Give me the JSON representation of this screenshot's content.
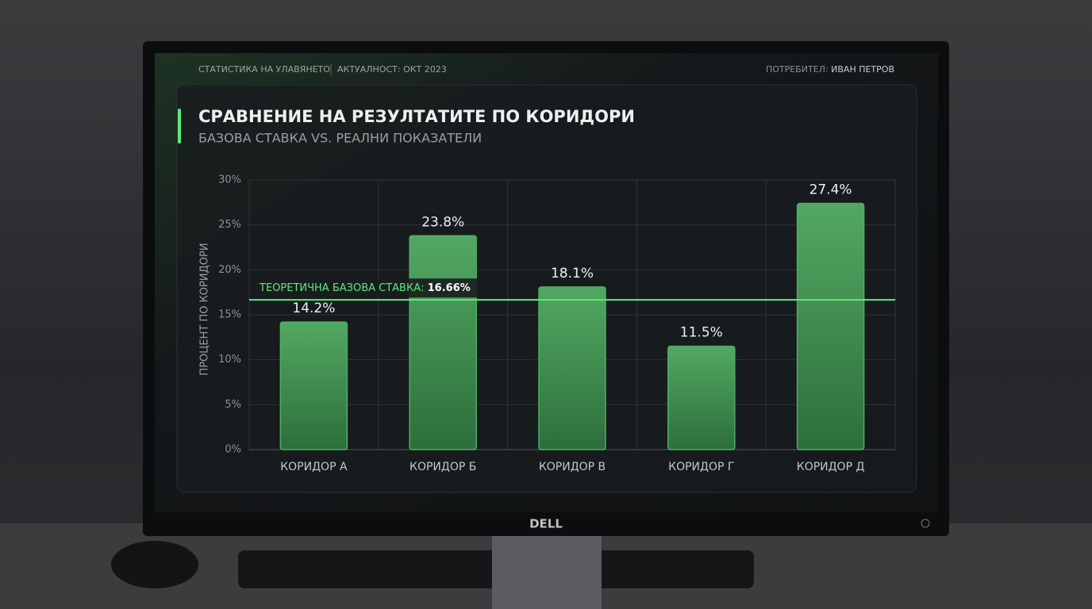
{
  "header": {
    "section": "СТАТИСТИКА НА УЛАВЯНЕТО",
    "updated": "АКТУАЛНОСТ: ОКТ 2023",
    "user_label": "ПОТРЕБИТЕЛ:",
    "user_name": "ИВАН ПЕТРОВ"
  },
  "brand": "DELL",
  "chart_data": {
    "type": "bar",
    "title": "СРАВНЕНИЕ НА РЕЗУЛТАТИТЕ ПО КОРИДОРИ",
    "subtitle": "БАЗОВА СТАВКА VS. РЕАЛНИ ПОКАЗАТЕЛИ",
    "y_label": "ПРОЦЕНТ ПО КОРИДОРИ",
    "categories": [
      "КОРИДОР А",
      "КОРИДОР Б",
      "КОРИДОР В",
      "КОРИДОР Г",
      "КОРИДОР Д"
    ],
    "values": [
      14.2,
      23.8,
      18.1,
      11.5,
      27.4
    ],
    "value_labels": [
      "14.2%",
      "23.8%",
      "18.1%",
      "11.5%",
      "27.4%"
    ],
    "color": "#4caf63",
    "ylim": [
      0,
      30
    ],
    "yticks": [
      {
        "value": 0,
        "label": "0%"
      },
      {
        "value": 5,
        "label": "5%"
      },
      {
        "value": 10,
        "label": "10%"
      },
      {
        "value": 15,
        "label": "15%"
      },
      {
        "value": 20,
        "label": "20%"
      },
      {
        "value": 25,
        "label": "25%"
      },
      {
        "value": 30,
        "label": "30%"
      }
    ],
    "grid": true,
    "reference_line": {
      "value": 16.66,
      "label": "ТЕОРЕТИЧНА БАЗОВА СТАВКА:",
      "value_label": "16.66%",
      "color": "#5dea7c"
    }
  }
}
